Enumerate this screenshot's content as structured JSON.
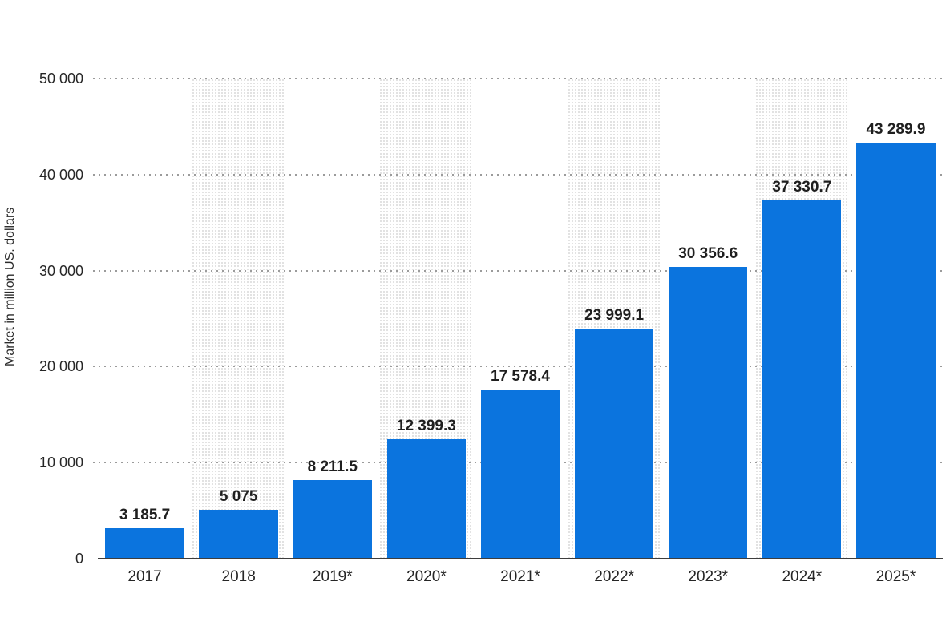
{
  "chart_data": {
    "type": "bar",
    "title": "",
    "ylabel": "Market in million US. dollars",
    "xlabel": "",
    "categories": [
      "2017",
      "2018",
      "2019*",
      "2020*",
      "2021*",
      "2022*",
      "2023*",
      "2024*",
      "2025*"
    ],
    "values": [
      3185.7,
      5075,
      8211.5,
      12399.3,
      17578.4,
      23999.1,
      30356.6,
      37330.7,
      43289.9
    ],
    "value_labels": [
      "3 185.7",
      "5 075",
      "8 211.5",
      "12 399.3",
      "17 578.4",
      "23 999.1",
      "30 356.6",
      "37 330.7",
      "43 289.9"
    ],
    "ylim": [
      0,
      50000
    ],
    "yticks": [
      {
        "value": 0,
        "label": "0"
      },
      {
        "value": 10000,
        "label": "10 000"
      },
      {
        "value": 20000,
        "label": "20 000"
      },
      {
        "value": 30000,
        "label": "30 000"
      },
      {
        "value": 40000,
        "label": "40 000"
      },
      {
        "value": 50000,
        "label": "50 000"
      }
    ],
    "grid": "horizontal-dotted",
    "legend": "none",
    "striped_columns": [
      1,
      3,
      5,
      7
    ],
    "colors": {
      "bar": "#0b74de",
      "gridline": "#9b9b9b",
      "axis_line": "#3d3d3d",
      "text": "#262626",
      "stripe_dot": "#e2e2e2",
      "background": "#ffffff"
    }
  }
}
